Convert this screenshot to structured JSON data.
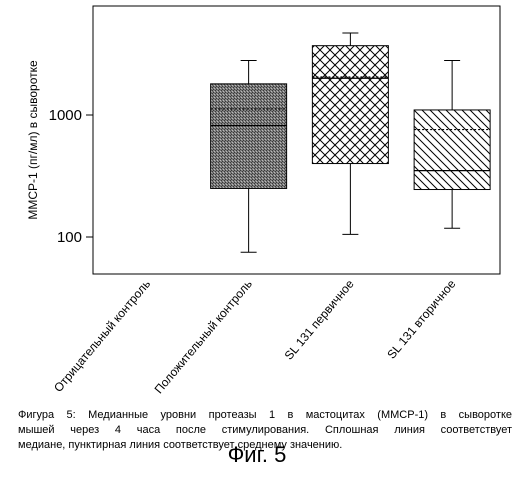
{
  "chart_data": {
    "type": "box",
    "ylabel": "MMCP-1 (пг/мл) в сыворотке",
    "yscale": "log",
    "ylim": [
      50,
      10000
    ],
    "yticks": [
      100,
      1000
    ],
    "ytick_labels": [
      "100",
      "1000"
    ],
    "grid": false,
    "categories": [
      "Отрицательный контроль",
      "Положительный контроль",
      "SL 131 первичное",
      "SL 131 вторичное"
    ],
    "boxes": [
      null,
      {
        "whisker_low": 75,
        "q1": 250,
        "median": 820,
        "mean": 1120,
        "q3": 1800,
        "whisker_high": 2800,
        "hatch": "dense"
      },
      {
        "whisker_low": 105,
        "q1": 400,
        "median": 2000,
        "mean": 2050,
        "q3": 3700,
        "whisker_high": 4700,
        "hatch": "cross"
      },
      {
        "whisker_low": 118,
        "q1": 245,
        "median": 350,
        "mean": 760,
        "q3": 1100,
        "whisker_high": 2800,
        "hatch": "diagonal"
      }
    ]
  },
  "caption": {
    "line1": "Фигура 5: Медианные уровни протеазы 1 в мастоцитах (MMCP-1) в сыворотке",
    "line2": "мышей через 4 часа после стимулирования. Сплошная линия соответствует",
    "line3": "медиане, пунктирная линия соответствует среднему значению."
  },
  "figure_label": "Фиг. 5"
}
